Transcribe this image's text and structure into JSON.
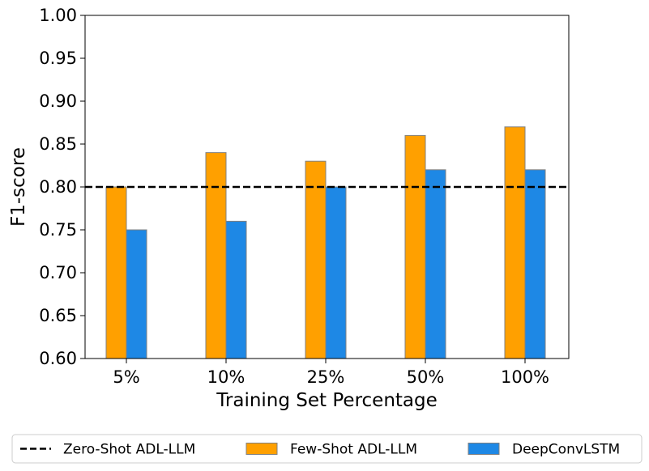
{
  "chart_data": {
    "type": "bar",
    "xlabel": "Training Set Percentage",
    "ylabel": "F1-score",
    "ylim": [
      0.6,
      1.0
    ],
    "yticks": [
      "0.60",
      "0.65",
      "0.70",
      "0.75",
      "0.80",
      "0.85",
      "0.90",
      "0.95",
      "1.00"
    ],
    "categories": [
      "5%",
      "10%",
      "25%",
      "50%",
      "100%"
    ],
    "series": [
      {
        "name": "Few-Shot ADL-LLM",
        "values": [
          0.8,
          0.84,
          0.83,
          0.86,
          0.87
        ],
        "color": "#FFA000"
      },
      {
        "name": "DeepConvLSTM",
        "values": [
          0.75,
          0.76,
          0.8,
          0.82,
          0.82
        ],
        "color": "#1E88E5"
      }
    ],
    "reference_line": {
      "name": "Zero-Shot ADL-LLM",
      "value": 0.8,
      "style": "dashed",
      "color": "#000000"
    },
    "bar_edge_color": "#808080",
    "grid": false,
    "legend_position": "bottom-center"
  }
}
